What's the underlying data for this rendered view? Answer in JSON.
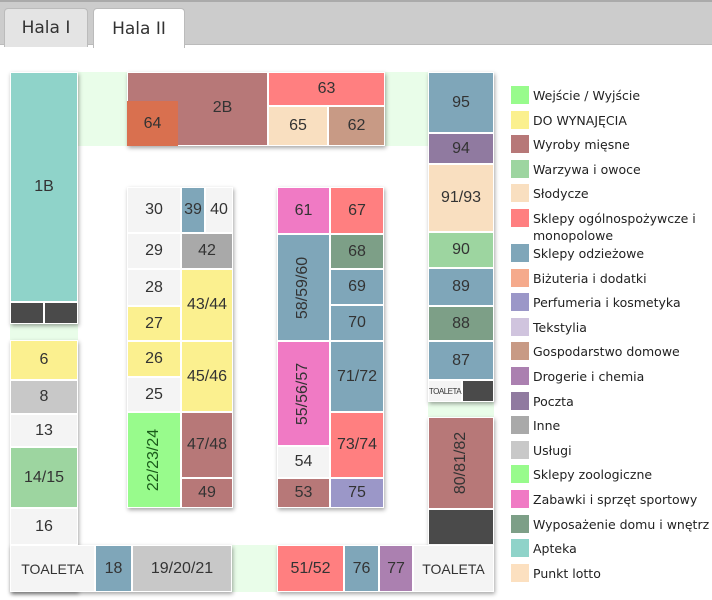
{
  "tabs": [
    {
      "label": "Hala I",
      "active": false
    },
    {
      "label": "Hala II",
      "active": true
    }
  ],
  "colors": {
    "entry": "#98fb8c",
    "rent": "#fbf08f",
    "meat": "#b77878",
    "veg": "#9dd5a0",
    "sweets": "#f9dfc0",
    "grocery": "#ff7f80",
    "clothes": "#7fa6b9",
    "jewelry": "#f5aa8c",
    "perfume": "#9b97c8",
    "textile": "#d0c4de",
    "household": "#c89a85",
    "drugstore": "#ab80b0",
    "post": "#907aa0",
    "other": "#a9a9a9",
    "services": "#c8c8c8",
    "zoo": "#98fb8c",
    "toys": "#f07ac4",
    "home": "#7d9f87",
    "pharmacy": "#8fd3c9",
    "lotto": "#fce0c0",
    "empty": "#f4f4f4",
    "dark": "#4a4a4a",
    "orange": "#d9704f"
  },
  "legend": [
    {
      "label": "Wejście / Wyjście",
      "cat": "entry"
    },
    {
      "label": "DO WYNAJĘCIA",
      "cat": "rent"
    },
    {
      "label": "Wyroby mięsne",
      "cat": "meat"
    },
    {
      "label": "Warzywa i owoce",
      "cat": "veg"
    },
    {
      "label": "Słodycze",
      "cat": "sweets"
    },
    {
      "label": "Sklepy ogólnospożywcze i monopolowe",
      "cat": "grocery"
    },
    {
      "label": "Sklepy odzieżowe",
      "cat": "clothes"
    },
    {
      "label": "Biżuteria i dodatki",
      "cat": "jewelry"
    },
    {
      "label": "Perfumeria i kosmetyka",
      "cat": "perfume"
    },
    {
      "label": "Tekstylia",
      "cat": "textile"
    },
    {
      "label": "Gospodarstwo domowe",
      "cat": "household"
    },
    {
      "label": "Drogerie i chemia",
      "cat": "drugstore"
    },
    {
      "label": "Poczta",
      "cat": "post"
    },
    {
      "label": "Inne",
      "cat": "other"
    },
    {
      "label": "Usługi",
      "cat": "services"
    },
    {
      "label": "Sklepy zoologiczne",
      "cat": "zoo"
    },
    {
      "label": "Zabawki i sprzęt sportowy",
      "cat": "toys"
    },
    {
      "label": "Wyposażenie domu i wnętrz",
      "cat": "home"
    },
    {
      "label": "Apteka",
      "cat": "pharmacy"
    },
    {
      "label": "Punkt lotto",
      "cat": "lotto"
    }
  ],
  "stalls": {
    "s1B": "1B",
    "s2B": "2B",
    "s64": "64",
    "s63": "63",
    "s65": "65",
    "s62": "62",
    "s95": "95",
    "s94": "94",
    "s9193": "91/93",
    "s90": "90",
    "s89": "89",
    "s88": "88",
    "s87": "87",
    "toaleta_r": "TOALETA",
    "s808182": "80/81/82",
    "s5152": "51/52",
    "s76": "76",
    "s77": "77",
    "toaleta_br": "TOALETA",
    "s6": "6",
    "s8": "8",
    "s13": "13",
    "s1415": "14/15",
    "s16": "16",
    "toaleta_bl": "TOALETA",
    "s18": "18",
    "s192021": "19/20/21",
    "s30": "30",
    "s39": "39",
    "s40": "40",
    "s29": "29",
    "s42": "42",
    "s28": "28",
    "s27": "27",
    "s4344": "43/44",
    "s26": "26",
    "s25": "25",
    "s4546": "45/46",
    "s222324": "22/23/24",
    "s4748": "47/48",
    "s49": "49",
    "s61": "61",
    "s67": "67",
    "s585960": "58/59/60",
    "s68": "68",
    "s69": "69",
    "s70": "70",
    "s555657": "55/56/57",
    "s54": "54",
    "s7172": "71/72",
    "s7374": "73/74",
    "s53": "53",
    "s75": "75"
  }
}
